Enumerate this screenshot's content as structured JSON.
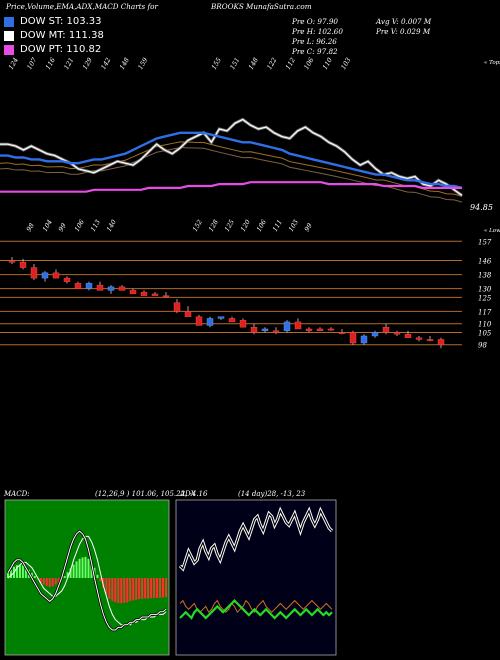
{
  "header": {
    "title": "Price,Volume,EMA,ADX,MACD Charts for",
    "site": "BROOKS MunafaSutra.com",
    "legend": [
      {
        "label": "DOW ST: 103.33",
        "color": "#2e6fe6"
      },
      {
        "label": "DOW MT: 111.38",
        "color": "#ffffff"
      },
      {
        "label": "DOW PT: 110.82",
        "color": "#e64ce6"
      }
    ],
    "stats_left": [
      "Pre  O: 97.90",
      "Pre  H: 102.60",
      "Pre  L: 96.26",
      "Pre  C: 97.82"
    ],
    "stats_right": [
      "Avg V: 0.007 M",
      "Pre  V: 0.029 M"
    ]
  },
  "chart_data": [
    {
      "type": "line",
      "name": "price-ema-panel",
      "top_label": "« Tops",
      "price_label": "94.85",
      "top_values": [
        "124",
        "107",
        "116",
        "121",
        "129",
        "142",
        "148",
        "159",
        "155",
        "151",
        "148",
        "122",
        "112",
        "106",
        "110",
        "103"
      ],
      "bottom_values": [
        "98",
        "104",
        "99",
        "106",
        "113",
        "140",
        "152",
        "128",
        "125",
        "120",
        "106",
        "111",
        "103",
        "99"
      ],
      "x": [
        1,
        2,
        3,
        4,
        5,
        6,
        7,
        8,
        9,
        10,
        11,
        12,
        13,
        14,
        15,
        16,
        17,
        18,
        19,
        20,
        21,
        22,
        23,
        24,
        25,
        26,
        27,
        28,
        29,
        30,
        31,
        32,
        33,
        34,
        35,
        36,
        37,
        38,
        39,
        40,
        41,
        42,
        43,
        44,
        45,
        46,
        47,
        48,
        49,
        50,
        51,
        52,
        53,
        54,
        55,
        56,
        57,
        58,
        59,
        60
      ],
      "series": [
        {
          "color": "#ffffff",
          "values": [
            142,
            142,
            141,
            139,
            141,
            139,
            137,
            136,
            134,
            132,
            129,
            128,
            127,
            129,
            131,
            133,
            132,
            131,
            134,
            138,
            142,
            139,
            137,
            140,
            144,
            146,
            148,
            143,
            150,
            149,
            153,
            155,
            152,
            150,
            151,
            148,
            146,
            145,
            149,
            151,
            148,
            146,
            143,
            141,
            138,
            134,
            131,
            133,
            129,
            126,
            127,
            125,
            124,
            125,
            121,
            120,
            123,
            121,
            118,
            115
          ]
        },
        {
          "color": "#2e6fe6",
          "values": [
            136,
            136,
            135,
            135,
            134,
            134,
            133,
            133,
            133,
            132,
            132,
            133,
            134,
            134,
            135,
            136,
            137,
            139,
            141,
            143,
            145,
            146,
            147,
            148,
            148,
            148,
            148,
            147,
            146,
            145,
            144,
            143,
            143,
            142,
            141,
            140,
            139,
            137,
            136,
            135,
            134,
            133,
            132,
            131,
            130,
            129,
            128,
            127,
            126,
            126,
            125,
            124,
            123,
            123,
            122,
            121,
            121,
            120,
            120,
            119
          ]
        },
        {
          "color": "#e64ce6",
          "values": [
            117,
            117,
            117,
            117,
            117,
            117,
            117,
            117,
            117,
            117,
            117,
            117,
            118,
            118,
            118,
            118,
            118,
            118,
            118,
            119,
            119,
            119,
            119,
            119,
            120,
            120,
            120,
            120,
            121,
            121,
            121,
            121,
            122,
            122,
            122,
            122,
            122,
            122,
            122,
            122,
            122,
            122,
            121,
            121,
            121,
            121,
            121,
            121,
            121,
            120,
            120,
            120,
            120,
            120,
            119,
            119,
            119,
            119,
            119,
            119
          ]
        }
      ]
    },
    {
      "type": "bar",
      "name": "candlestick-panel",
      "bottom_label": "« Lows",
      "ticks": [
        "157",
        "146",
        "138",
        "130",
        "125",
        "117",
        "110",
        "105",
        "98"
      ],
      "candles": [
        {
          "o": 146,
          "h": 148,
          "l": 144,
          "c": 145,
          "up": false
        },
        {
          "o": 145,
          "h": 147,
          "l": 141,
          "c": 142,
          "up": false
        },
        {
          "o": 142,
          "h": 144,
          "l": 135,
          "c": 136,
          "up": false
        },
        {
          "o": 136,
          "h": 140,
          "l": 134,
          "c": 139,
          "up": true
        },
        {
          "o": 139,
          "h": 141,
          "l": 136,
          "c": 136,
          "up": false
        },
        {
          "o": 136,
          "h": 137,
          "l": 133,
          "c": 134,
          "up": false
        },
        {
          "o": 133,
          "h": 134,
          "l": 130,
          "c": 130,
          "up": false
        },
        {
          "o": 130,
          "h": 134,
          "l": 129,
          "c": 133,
          "up": true
        },
        {
          "o": 132,
          "h": 134,
          "l": 129,
          "c": 129,
          "up": false
        },
        {
          "o": 129,
          "h": 132,
          "l": 127,
          "c": 131,
          "up": true
        },
        {
          "o": 131,
          "h": 132,
          "l": 129,
          "c": 129,
          "up": false
        },
        {
          "o": 129,
          "h": 130,
          "l": 127,
          "c": 127,
          "up": false
        },
        {
          "o": 128,
          "h": 129,
          "l": 126,
          "c": 126,
          "up": false
        },
        {
          "o": 127,
          "h": 128,
          "l": 126,
          "c": 126,
          "up": false
        },
        {
          "o": 126,
          "h": 128,
          "l": 125,
          "c": 126,
          "up": false
        },
        {
          "o": 122,
          "h": 124,
          "l": 116,
          "c": 117,
          "up": false
        },
        {
          "o": 117,
          "h": 120,
          "l": 114,
          "c": 114,
          "up": false
        },
        {
          "o": 114,
          "h": 115,
          "l": 109,
          "c": 109,
          "up": false
        },
        {
          "o": 109,
          "h": 114,
          "l": 108,
          "c": 113,
          "up": true
        },
        {
          "o": 113,
          "h": 114,
          "l": 112,
          "c": 114,
          "up": true
        },
        {
          "o": 113,
          "h": 114,
          "l": 111,
          "c": 111,
          "up": false
        },
        {
          "o": 112,
          "h": 113,
          "l": 108,
          "c": 108,
          "up": false
        },
        {
          "o": 108,
          "h": 110,
          "l": 104,
          "c": 105,
          "up": false
        },
        {
          "o": 106,
          "h": 108,
          "l": 105,
          "c": 107,
          "up": true
        },
        {
          "o": 106,
          "h": 108,
          "l": 104,
          "c": 105,
          "up": false
        },
        {
          "o": 106,
          "h": 112,
          "l": 105,
          "c": 111,
          "up": true
        },
        {
          "o": 111,
          "h": 113,
          "l": 107,
          "c": 107,
          "up": false
        },
        {
          "o": 107,
          "h": 108,
          "l": 105,
          "c": 106,
          "up": false
        },
        {
          "o": 107,
          "h": 108,
          "l": 106,
          "c": 106,
          "up": false
        },
        {
          "o": 107,
          "h": 108,
          "l": 106,
          "c": 107,
          "up": false
        },
        {
          "o": 105,
          "h": 107,
          "l": 104,
          "c": 105,
          "up": false
        },
        {
          "o": 105,
          "h": 106,
          "l": 98,
          "c": 99,
          "up": false
        },
        {
          "o": 99,
          "h": 104,
          "l": 98,
          "c": 103,
          "up": true
        },
        {
          "o": 103,
          "h": 106,
          "l": 102,
          "c": 105,
          "up": true
        },
        {
          "o": 105,
          "h": 110,
          "l": 104,
          "c": 108,
          "up": false
        },
        {
          "o": 105,
          "h": 106,
          "l": 103,
          "c": 104,
          "up": false
        },
        {
          "o": 104,
          "h": 106,
          "l": 102,
          "c": 102,
          "up": false
        },
        {
          "o": 102,
          "h": 103,
          "l": 100,
          "c": 101,
          "up": false
        },
        {
          "o": 101,
          "h": 103,
          "l": 100,
          "c": 101,
          "up": false
        },
        {
          "o": 101,
          "h": 102,
          "l": 96,
          "c": 98,
          "up": false
        }
      ]
    },
    {
      "type": "bar",
      "name": "macd-panel",
      "label": "MACD:",
      "params": "(12,26,9 ) 101.06, 105.22, -4.16",
      "histogram": [
        1.5,
        2.5,
        3.5,
        4.0,
        4.2,
        4.0,
        3.5,
        2.6,
        1.6,
        0.6,
        -0.4,
        -1.4,
        -2.0,
        -2.5,
        -2.8,
        -2.6,
        -2.0,
        -1.4,
        -0.6,
        0.6,
        1.8,
        3.0,
        4.2,
        5.2,
        6.0,
        6.4,
        6.6,
        6.0,
        5.0,
        3.2,
        1.0,
        -1.0,
        -3.0,
        -5.0,
        -6.5,
        -7.2,
        -7.6,
        -7.8,
        -7.9,
        -7.8,
        -7.6,
        -7.2,
        -7.0,
        -6.8,
        -6.6,
        -6.5,
        -6.4,
        -6.4,
        -6.3,
        -6.3,
        -6.2,
        -6.2,
        -6.1,
        -6.0
      ],
      "macd_line": [
        2,
        4,
        6,
        7,
        7,
        6,
        4,
        2,
        0,
        -2,
        -4,
        -6,
        -7,
        -8,
        -9,
        -8,
        -6,
        -3,
        0,
        4,
        8,
        12,
        15,
        17,
        18,
        17,
        15,
        11,
        6,
        0,
        -5,
        -10,
        -14,
        -17,
        -19,
        -20,
        -20,
        -19,
        -19,
        -18,
        -18,
        -17,
        -17,
        -16,
        -16,
        -15,
        -15,
        -15,
        -14,
        -14,
        -14,
        -13,
        -13,
        -12
      ],
      "signal_line": [
        0,
        1,
        2,
        4,
        5,
        6,
        6,
        5,
        4,
        2,
        0,
        -2,
        -4,
        -5,
        -6,
        -7,
        -7,
        -6,
        -5,
        -3,
        0,
        3,
        7,
        10,
        13,
        15,
        16,
        16,
        14,
        11,
        7,
        2,
        -3,
        -7,
        -11,
        -14,
        -16,
        -17,
        -18,
        -18,
        -18,
        -18,
        -17,
        -17,
        -16,
        -16,
        -16,
        -15,
        -15,
        -15,
        -14,
        -14,
        -14,
        -13
      ]
    },
    {
      "type": "line",
      "name": "adx-panel",
      "label": "ADX",
      "params": "(14 day)28, -13, 23",
      "plus_di": [
        28,
        27,
        30,
        33,
        31,
        29,
        30,
        34,
        36,
        33,
        31,
        34,
        35,
        32,
        30,
        33,
        36,
        38,
        36,
        34,
        37,
        40,
        42,
        40,
        38,
        41,
        44,
        45,
        42,
        40,
        43,
        46,
        45,
        42,
        44,
        47,
        45,
        43,
        42,
        44,
        46,
        43,
        40,
        43,
        45,
        47,
        44,
        42,
        44,
        47,
        45,
        43,
        41,
        40
      ],
      "minus_di": [
        15,
        16,
        14,
        13,
        14,
        15,
        13,
        12,
        13,
        14,
        12,
        13,
        15,
        16,
        14,
        13,
        12,
        13,
        15,
        14,
        12,
        13,
        14,
        16,
        15,
        13,
        12,
        14,
        15,
        16,
        14,
        13,
        12,
        13,
        14,
        15,
        14,
        13,
        14,
        15,
        16,
        15,
        14,
        13,
        14,
        15,
        16,
        15,
        14,
        13,
        14,
        15,
        14,
        13
      ],
      "adx": [
        10,
        11,
        12,
        11,
        10,
        12,
        13,
        12,
        11,
        10,
        11,
        12,
        13,
        14,
        13,
        12,
        13,
        14,
        15,
        16,
        15,
        14,
        13,
        12,
        11,
        12,
        13,
        12,
        11,
        12,
        13,
        12,
        11,
        10,
        11,
        12,
        11,
        10,
        11,
        12,
        13,
        12,
        11,
        12,
        13,
        12,
        11,
        12,
        13,
        12,
        11,
        12,
        11,
        12
      ]
    }
  ]
}
